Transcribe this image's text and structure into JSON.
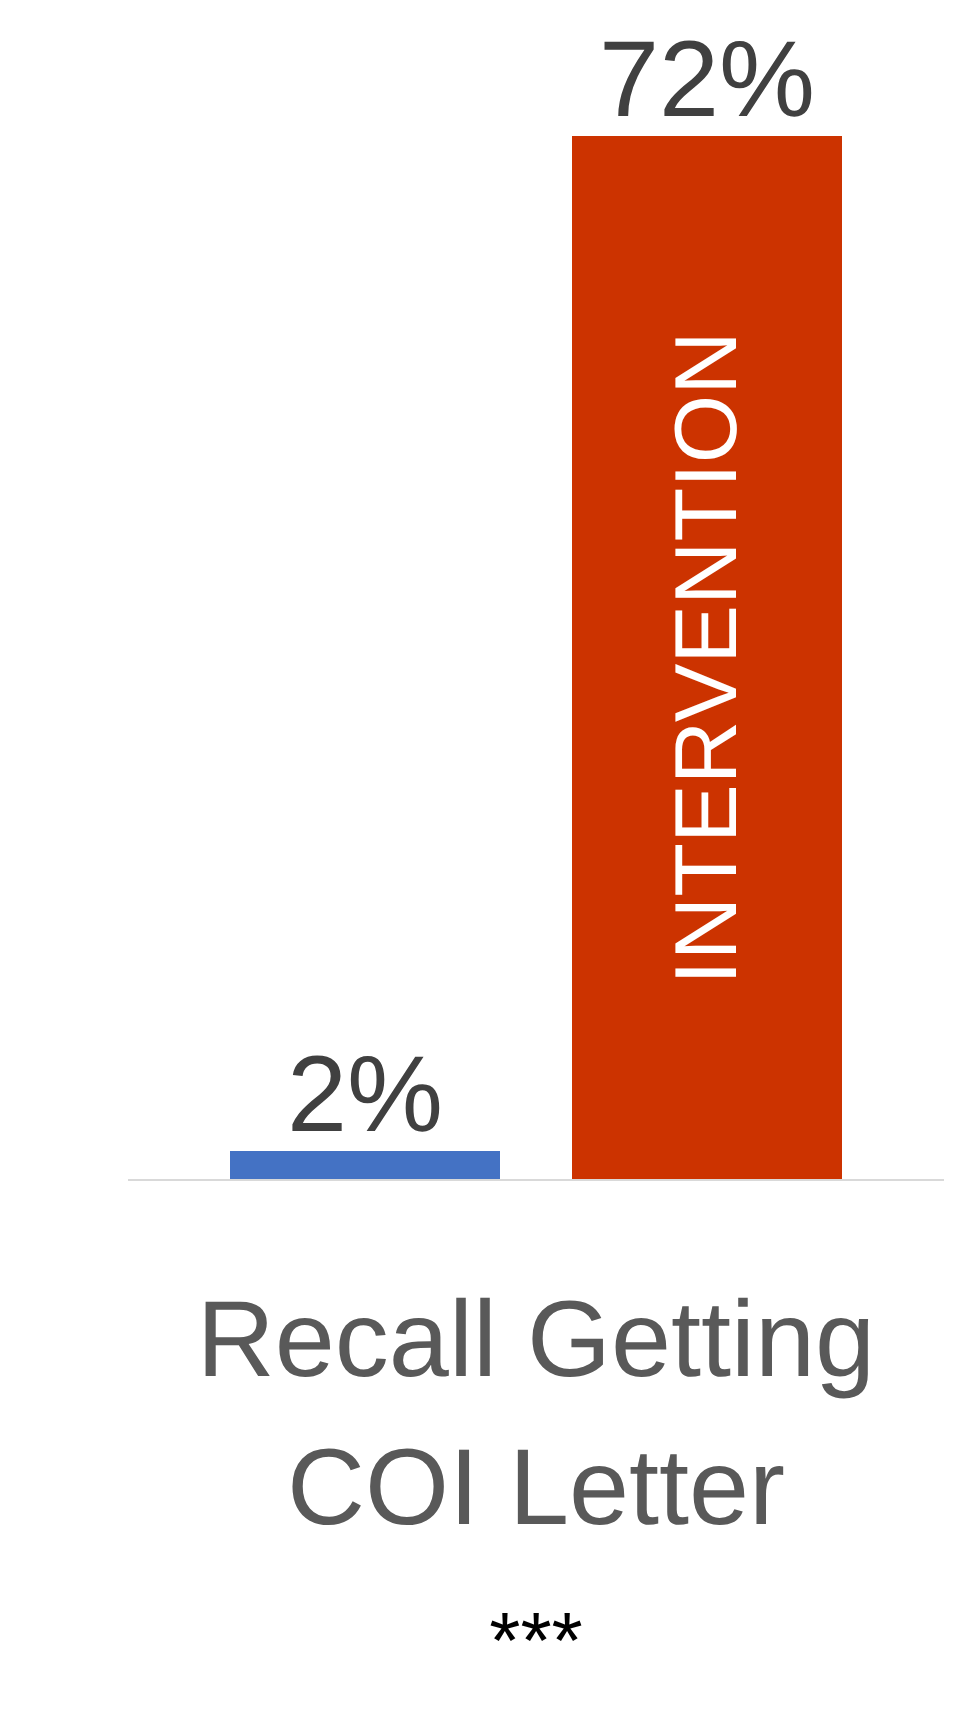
{
  "chart_data": {
    "type": "bar",
    "categories": [
      "Recall Getting COI Letter"
    ],
    "series": [
      {
        "color": "#4472c4",
        "values": [
          2
        ],
        "value_labels": [
          "2%"
        ]
      },
      {
        "name": "INTERVENTION",
        "color": "#cc3300",
        "values": [
          72
        ],
        "value_labels": [
          "72%"
        ]
      }
    ],
    "annotations": [
      "***"
    ],
    "legend": false,
    "grid": false
  }
}
